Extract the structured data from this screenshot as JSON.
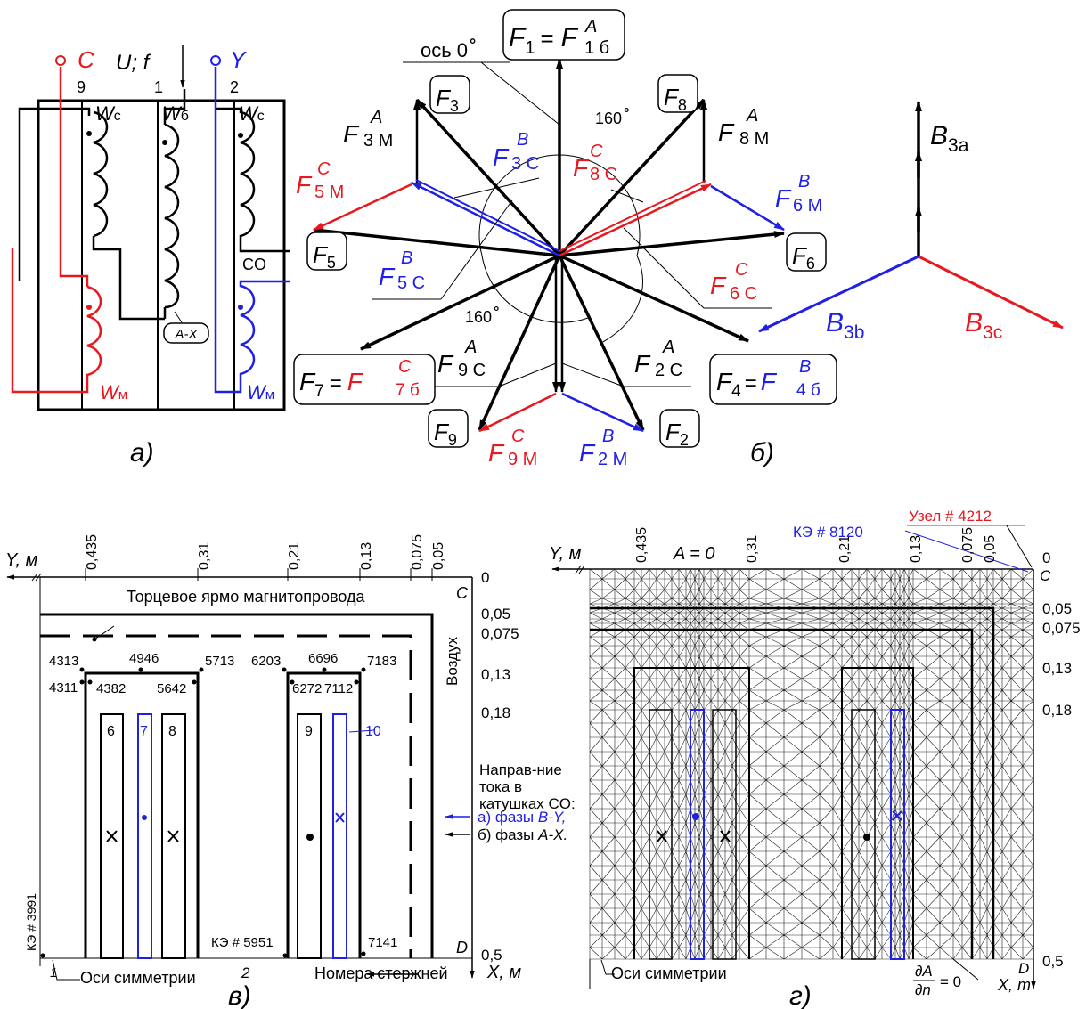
{
  "colors": {
    "black": "#000000",
    "red": "#e8181f",
    "blue": "#1f1fe6"
  },
  "panels": {
    "a": "а)",
    "b": "б)",
    "v": "в)",
    "g": "г)"
  },
  "circuit": {
    "C": "C",
    "Y": "Y",
    "U": "U; f",
    "t9": "9",
    "t1": "1",
    "t2": "2",
    "Wc1_W": "W",
    "Wc1_s": "с",
    "Wb_W": "W",
    "Wb_s": "б",
    "Wc2_W": "W",
    "Wc2_s": "с",
    "Wm1_W": "W",
    "Wm1_s": "м",
    "Wm2_W": "W",
    "Wm2_s": "м",
    "AX": "A-X",
    "CO": "CO"
  },
  "vectors": {
    "axis": "ось 0",
    "deg": "°",
    "F1_F": "F",
    "F1_n": "1",
    "F1_eq": "=",
    "F1_R": "F",
    "F1_sup": "A",
    "F1_sub": "1 б",
    "F3_box_F": "F",
    "F3_box_n": "3",
    "F8_box_F": "F",
    "F8_box_n": "8",
    "F5_box_F": "F",
    "F5_box_n": "5",
    "F6_box_F": "F",
    "F6_box_n": "6",
    "F9_box_F": "F",
    "F9_box_n": "9",
    "F2_box_F": "F",
    "F2_box_n": "2",
    "F7_F": "F",
    "F7_n": "7",
    "F7_eq": "=",
    "F7_R": "F",
    "F7_sup": "C",
    "F7_sub": "7 б",
    "F4_F": "F",
    "F4_n": "4",
    "F4_eq": "=",
    "F4_R": "F",
    "F4_sup": "B",
    "F4_sub": "4 б",
    "ang1": "160",
    "ang2": "160",
    "l3M_F": "F",
    "l3M_sup": "A",
    "l3M_sub": "3 М",
    "l8M_F": "F",
    "l8M_sup": "A",
    "l8M_sub": "8 М",
    "l3C_F": "F",
    "l3C_sup": "B",
    "l3C_sub": "3 С",
    "l8C_F": "F",
    "l8C_sup": "C",
    "l8C_sub": "8 С",
    "l5M_F": "F",
    "l5M_sup": "C",
    "l5M_sub": "5 М",
    "l6M_F": "F",
    "l6M_sup": "B",
    "l6M_sub": "6 М",
    "l5C_F": "F",
    "l5C_sup": "B",
    "l5C_sub": "5 С",
    "l6C_F": "F",
    "l6C_sup": "C",
    "l6C_sub": "6 С",
    "l9C_F": "F",
    "l9C_sup": "A",
    "l9C_sub": "9 С",
    "l2C_F": "F",
    "l2C_sup": "A",
    "l2C_sub": "2 С",
    "l9M_F": "F",
    "l9M_sup": "C",
    "l9M_sub": "9 М",
    "l2M_F": "F",
    "l2M_sup": "B",
    "l2M_sub": "2 М",
    "B3a_B": "B",
    "B3a_sub": "3a",
    "B3b_B": "B",
    "B3b_sub": "3b",
    "B3c_B": "B",
    "B3c_sub": "3c"
  },
  "model": {
    "y_axis": "Y, м",
    "x_axis": "X, м",
    "top_ticks": [
      "0,435",
      "0,31",
      "0,21",
      "0,13",
      "0,075",
      "0,05"
    ],
    "side_ticks": [
      "0",
      "0,05",
      "0,075",
      "0,13",
      "0,18",
      "0,5"
    ],
    "C": "C",
    "D": "D",
    "yoke": "Торцевое ярмо магнитопровода",
    "air": "Воздух",
    "nodes": [
      "4313",
      "4946",
      "5713",
      "6203",
      "6696",
      "7183",
      "4311",
      "4382",
      "5642",
      "6272",
      "7112",
      "7141"
    ],
    "coils": [
      "6",
      "7",
      "8",
      "9",
      "10"
    ],
    "ke3991": "КЭ # 3991",
    "ke5951": "КЭ # 5951",
    "sym": "Оси симметрии",
    "rods": "Номера стержней",
    "rod1": "1",
    "rod2": "2",
    "dir1": "Направ-ние",
    "dir2": "тока в",
    "dir3": "катушках CO:",
    "dir_a_pre": "а) фазы ",
    "dir_a_phase": "B-Y,",
    "dir_b_pre": "б) фазы ",
    "dir_b_phase": "A-X."
  },
  "mesh": {
    "y_axis": "Y, м",
    "x_axis": "X, m",
    "top_ticks": [
      "0,435",
      "0,31",
      "0,21",
      "0,13",
      "0,075",
      "0,05"
    ],
    "side_ticks": [
      "0",
      "0,05",
      "0,075",
      "0,13",
      "0,18",
      "0,5"
    ],
    "A0": "A = 0",
    "ke8120": "КЭ # 8120",
    "node4212": "Узел # 4212",
    "C": "C",
    "D": "D",
    "sym": "Оси симметрии",
    "dA": "∂A",
    "dn": "∂n",
    "dA_eq": "= 0"
  }
}
